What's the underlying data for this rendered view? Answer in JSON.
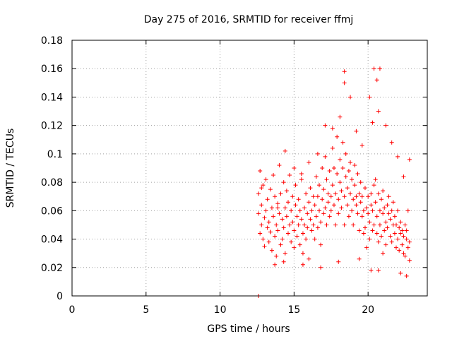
{
  "chart_data": {
    "type": "scatter",
    "title": "Day 275 of 2016, SRMTID for receiver ffmj",
    "xlabel": "GPS time / hours",
    "ylabel": "SRMTID / TECUs",
    "xlim": [
      0,
      24
    ],
    "ylim": [
      0,
      0.18
    ],
    "x_ticks": [
      0,
      5,
      10,
      15,
      20
    ],
    "x_tick_labels": [
      "0",
      "5",
      "10",
      "15",
      "20"
    ],
    "y_ticks": [
      0,
      0.02,
      0.04,
      0.06,
      0.08,
      0.1,
      0.12,
      0.14,
      0.16,
      0.18
    ],
    "y_tick_labels": [
      "0",
      "0.02",
      "0.04",
      "0.06",
      "0.08",
      "0.1",
      "0.12",
      "0.14",
      "0.16",
      "0.18"
    ],
    "grid": true,
    "marker": "+",
    "color": "#ff0000",
    "series": [
      {
        "name": "SRMTID",
        "x": [
          12.6,
          12.6,
          12.7,
          12.7,
          12.8,
          12.8,
          12.9,
          12.9,
          13.0,
          13.0,
          13.1,
          13.1,
          13.2,
          13.2,
          13.3,
          13.3,
          13.4,
          13.4,
          13.5,
          13.5,
          13.6,
          13.6,
          13.7,
          13.7,
          13.8,
          13.8,
          13.9,
          13.9,
          14.0,
          14.0,
          14.1,
          14.1,
          14.2,
          14.2,
          14.3,
          14.3,
          14.4,
          14.4,
          14.5,
          14.5,
          14.6,
          14.6,
          14.7,
          14.7,
          14.8,
          14.8,
          14.9,
          14.9,
          15.0,
          15.0,
          15.1,
          15.1,
          15.2,
          15.2,
          15.3,
          15.3,
          15.4,
          15.4,
          15.5,
          15.5,
          15.6,
          15.6,
          15.7,
          15.7,
          15.8,
          15.8,
          15.9,
          15.9,
          16.0,
          16.0,
          16.1,
          16.1,
          16.2,
          16.2,
          16.3,
          16.3,
          16.4,
          16.4,
          16.5,
          16.5,
          16.6,
          16.6,
          16.7,
          16.7,
          16.8,
          16.8,
          16.9,
          16.9,
          17.0,
          17.0,
          17.1,
          17.1,
          17.2,
          17.2,
          17.3,
          17.3,
          17.4,
          17.4,
          17.5,
          17.5,
          17.6,
          17.6,
          17.7,
          17.7,
          17.8,
          17.8,
          17.9,
          17.9,
          18.0,
          18.0,
          18.1,
          18.1,
          18.2,
          18.2,
          18.3,
          18.3,
          18.4,
          18.4,
          18.5,
          18.5,
          18.6,
          18.6,
          18.7,
          18.7,
          18.8,
          18.8,
          18.9,
          18.9,
          19.0,
          19.0,
          19.1,
          19.1,
          19.2,
          19.2,
          19.3,
          19.3,
          19.4,
          19.4,
          19.5,
          19.5,
          19.6,
          19.6,
          19.7,
          19.7,
          19.8,
          19.8,
          19.9,
          19.9,
          20.0,
          20.0,
          20.1,
          20.1,
          20.2,
          20.2,
          20.3,
          20.3,
          20.4,
          20.4,
          20.5,
          20.5,
          20.6,
          20.6,
          20.7,
          20.7,
          20.8,
          20.8,
          20.9,
          20.9,
          21.0,
          21.0,
          21.1,
          21.1,
          21.2,
          21.2,
          21.3,
          21.3,
          21.4,
          21.4,
          21.5,
          21.5,
          21.6,
          21.6,
          21.7,
          21.7,
          21.8,
          21.8,
          21.9,
          21.9,
          22.0,
          22.0,
          22.1,
          22.1,
          22.2,
          22.2,
          22.3,
          22.3,
          22.4,
          22.4,
          22.5,
          22.5,
          22.6,
          22.6,
          22.7,
          22.7,
          22.8,
          22.8,
          12.8,
          13.4,
          13.9,
          14.4,
          15.0,
          15.5,
          16.0,
          16.6,
          17.1,
          17.6,
          18.1,
          18.4,
          18.4,
          18.8,
          19.2,
          19.6,
          20.1,
          20.3,
          20.4,
          20.6,
          20.7,
          20.8,
          21.2,
          21.6,
          22.0,
          22.4,
          22.8,
          20.2,
          20.7,
          13.7,
          14.3,
          15.6,
          16.8,
          18.0,
          19.4,
          21.0,
          22.2,
          22.6,
          12.6
        ],
        "y": [
          0.058,
          0.072,
          0.044,
          0.088,
          0.05,
          0.064,
          0.04,
          0.078,
          0.055,
          0.035,
          0.06,
          0.082,
          0.048,
          0.068,
          0.052,
          0.038,
          0.075,
          0.045,
          0.062,
          0.032,
          0.056,
          0.085,
          0.042,
          0.07,
          0.05,
          0.028,
          0.065,
          0.046,
          0.058,
          0.092,
          0.036,
          0.072,
          0.054,
          0.04,
          0.08,
          0.048,
          0.062,
          0.03,
          0.056,
          0.074,
          0.044,
          0.066,
          0.05,
          0.085,
          0.038,
          0.06,
          0.052,
          0.07,
          0.046,
          0.034,
          0.064,
          0.078,
          0.042,
          0.056,
          0.05,
          0.068,
          0.036,
          0.06,
          0.054,
          0.082,
          0.044,
          0.03,
          0.062,
          0.05,
          0.072,
          0.04,
          0.058,
          0.048,
          0.066,
          0.026,
          0.054,
          0.076,
          0.046,
          0.06,
          0.05,
          0.07,
          0.04,
          0.064,
          0.056,
          0.084,
          0.048,
          0.07,
          0.06,
          0.078,
          0.052,
          0.036,
          0.068,
          0.09,
          0.058,
          0.075,
          0.062,
          0.098,
          0.05,
          0.082,
          0.066,
          0.072,
          0.056,
          0.088,
          0.07,
          0.06,
          0.078,
          0.104,
          0.064,
          0.09,
          0.072,
          0.05,
          0.086,
          0.112,
          0.068,
          0.058,
          0.08,
          0.096,
          0.074,
          0.062,
          0.09,
          0.108,
          0.07,
          0.05,
          0.084,
          0.1,
          0.064,
          0.076,
          0.088,
          0.056,
          0.072,
          0.094,
          0.06,
          0.082,
          0.068,
          0.05,
          0.078,
          0.092,
          0.064,
          0.07,
          0.058,
          0.086,
          0.072,
          0.046,
          0.066,
          0.08,
          0.056,
          0.07,
          0.044,
          0.06,
          0.076,
          0.048,
          0.062,
          0.034,
          0.058,
          0.07,
          0.04,
          0.052,
          0.064,
          0.072,
          0.046,
          0.06,
          0.078,
          0.05,
          0.066,
          0.082,
          0.044,
          0.056,
          0.072,
          0.038,
          0.06,
          0.05,
          0.068,
          0.042,
          0.058,
          0.074,
          0.046,
          0.062,
          0.052,
          0.036,
          0.064,
          0.048,
          0.058,
          0.07,
          0.042,
          0.054,
          0.06,
          0.038,
          0.066,
          0.05,
          0.044,
          0.056,
          0.034,
          0.05,
          0.06,
          0.04,
          0.048,
          0.032,
          0.052,
          0.044,
          0.036,
          0.046,
          0.03,
          0.042,
          0.05,
          0.028,
          0.04,
          0.046,
          0.034,
          0.06,
          0.038,
          0.025,
          0.076,
          0.045,
          0.062,
          0.102,
          0.09,
          0.086,
          0.094,
          0.1,
          0.12,
          0.118,
          0.126,
          0.158,
          0.15,
          0.14,
          0.116,
          0.106,
          0.14,
          0.122,
          0.16,
          0.152,
          0.13,
          0.16,
          0.12,
          0.108,
          0.098,
          0.084,
          0.096,
          0.018,
          0.018,
          0.022,
          0.024,
          0.022,
          0.02,
          0.024,
          0.026,
          0.03,
          0.016,
          0.014,
          0.0
        ]
      }
    ]
  }
}
